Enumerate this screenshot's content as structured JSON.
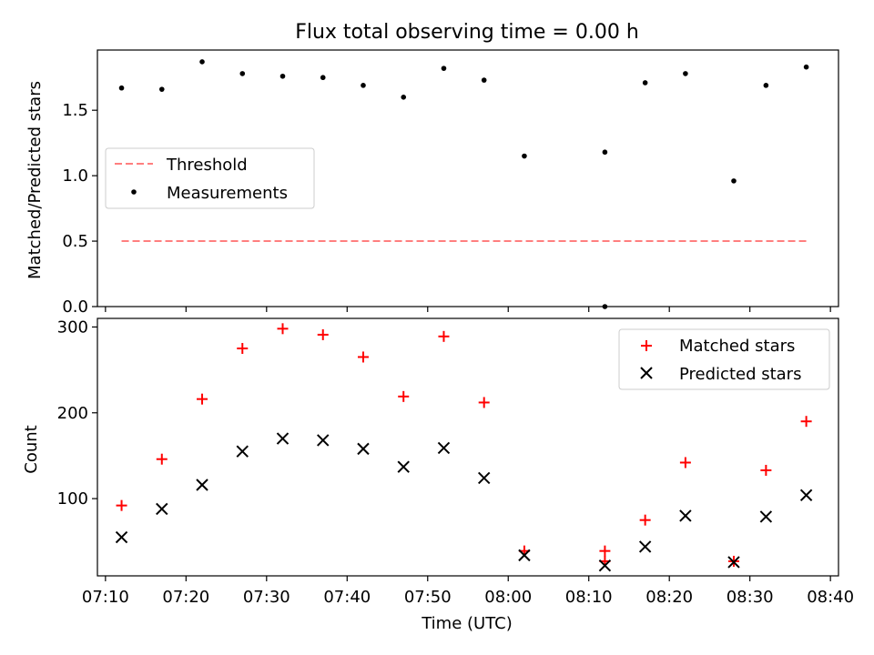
{
  "title": "Flux total observing time = 0.00 h",
  "xlabel": "Time (UTC)",
  "x_ticks": [
    "07:10",
    "07:20",
    "07:30",
    "07:40",
    "07:50",
    "08:00",
    "08:10",
    "08:20",
    "08:30",
    "08:40"
  ],
  "chart_data": [
    {
      "type": "scatter",
      "title": "Flux total observing time = 0.00 h",
      "ylabel": "Matched/Predicted stars",
      "xlim": [
        "07:09",
        "08:41"
      ],
      "ylim": [
        0,
        1.96
      ],
      "y_ticks": [
        "0.0",
        "0.5",
        "1.0",
        "1.5"
      ],
      "legend_position": "center-left",
      "series": [
        {
          "name": "Threshold",
          "kind": "dashed-line",
          "color": "#ff7f7f",
          "x": [
            "07:12",
            "08:37"
          ],
          "y": [
            0.5,
            0.5
          ]
        },
        {
          "name": "Measurements",
          "kind": "points",
          "color": "#000000",
          "x": [
            "07:12",
            "07:17",
            "07:22",
            "07:27",
            "07:32",
            "07:37",
            "07:42",
            "07:47",
            "07:52",
            "07:57",
            "08:02",
            "08:12",
            "08:12",
            "08:17",
            "08:22",
            "08:28",
            "08:32",
            "08:37"
          ],
          "y": [
            1.67,
            1.66,
            1.87,
            1.78,
            1.76,
            1.75,
            1.69,
            1.6,
            1.82,
            1.73,
            1.15,
            0.0,
            1.18,
            1.71,
            1.78,
            0.96,
            1.69,
            1.83
          ]
        }
      ]
    },
    {
      "type": "scatter",
      "ylabel": "Count",
      "xlabel": "Time (UTC)",
      "xlim": [
        "07:09",
        "08:41"
      ],
      "ylim": [
        10,
        310
      ],
      "y_ticks": [
        "100",
        "200",
        "300"
      ],
      "legend_position": "top-right",
      "series": [
        {
          "name": "Matched stars",
          "marker": "plus",
          "color": "#ff0000",
          "x": [
            "07:12",
            "07:17",
            "07:22",
            "07:27",
            "07:32",
            "07:37",
            "07:42",
            "07:47",
            "07:52",
            "07:57",
            "08:02",
            "08:12",
            "08:12",
            "08:17",
            "08:22",
            "08:28",
            "08:32",
            "08:37"
          ],
          "y": [
            92,
            146,
            216,
            275,
            298,
            291,
            265,
            219,
            289,
            212,
            39,
            39,
            27,
            75,
            142,
            27,
            133,
            190
          ]
        },
        {
          "name": "Predicted stars",
          "marker": "x",
          "color": "#000000",
          "x": [
            "07:12",
            "07:17",
            "07:22",
            "07:27",
            "07:32",
            "07:37",
            "07:42",
            "07:47",
            "07:52",
            "07:57",
            "08:02",
            "08:12",
            "08:17",
            "08:22",
            "08:28",
            "08:32",
            "08:37"
          ],
          "y": [
            55,
            88,
            116,
            155,
            170,
            168,
            158,
            137,
            159,
            124,
            34,
            22,
            44,
            80,
            26,
            79,
            104
          ]
        }
      ]
    }
  ]
}
